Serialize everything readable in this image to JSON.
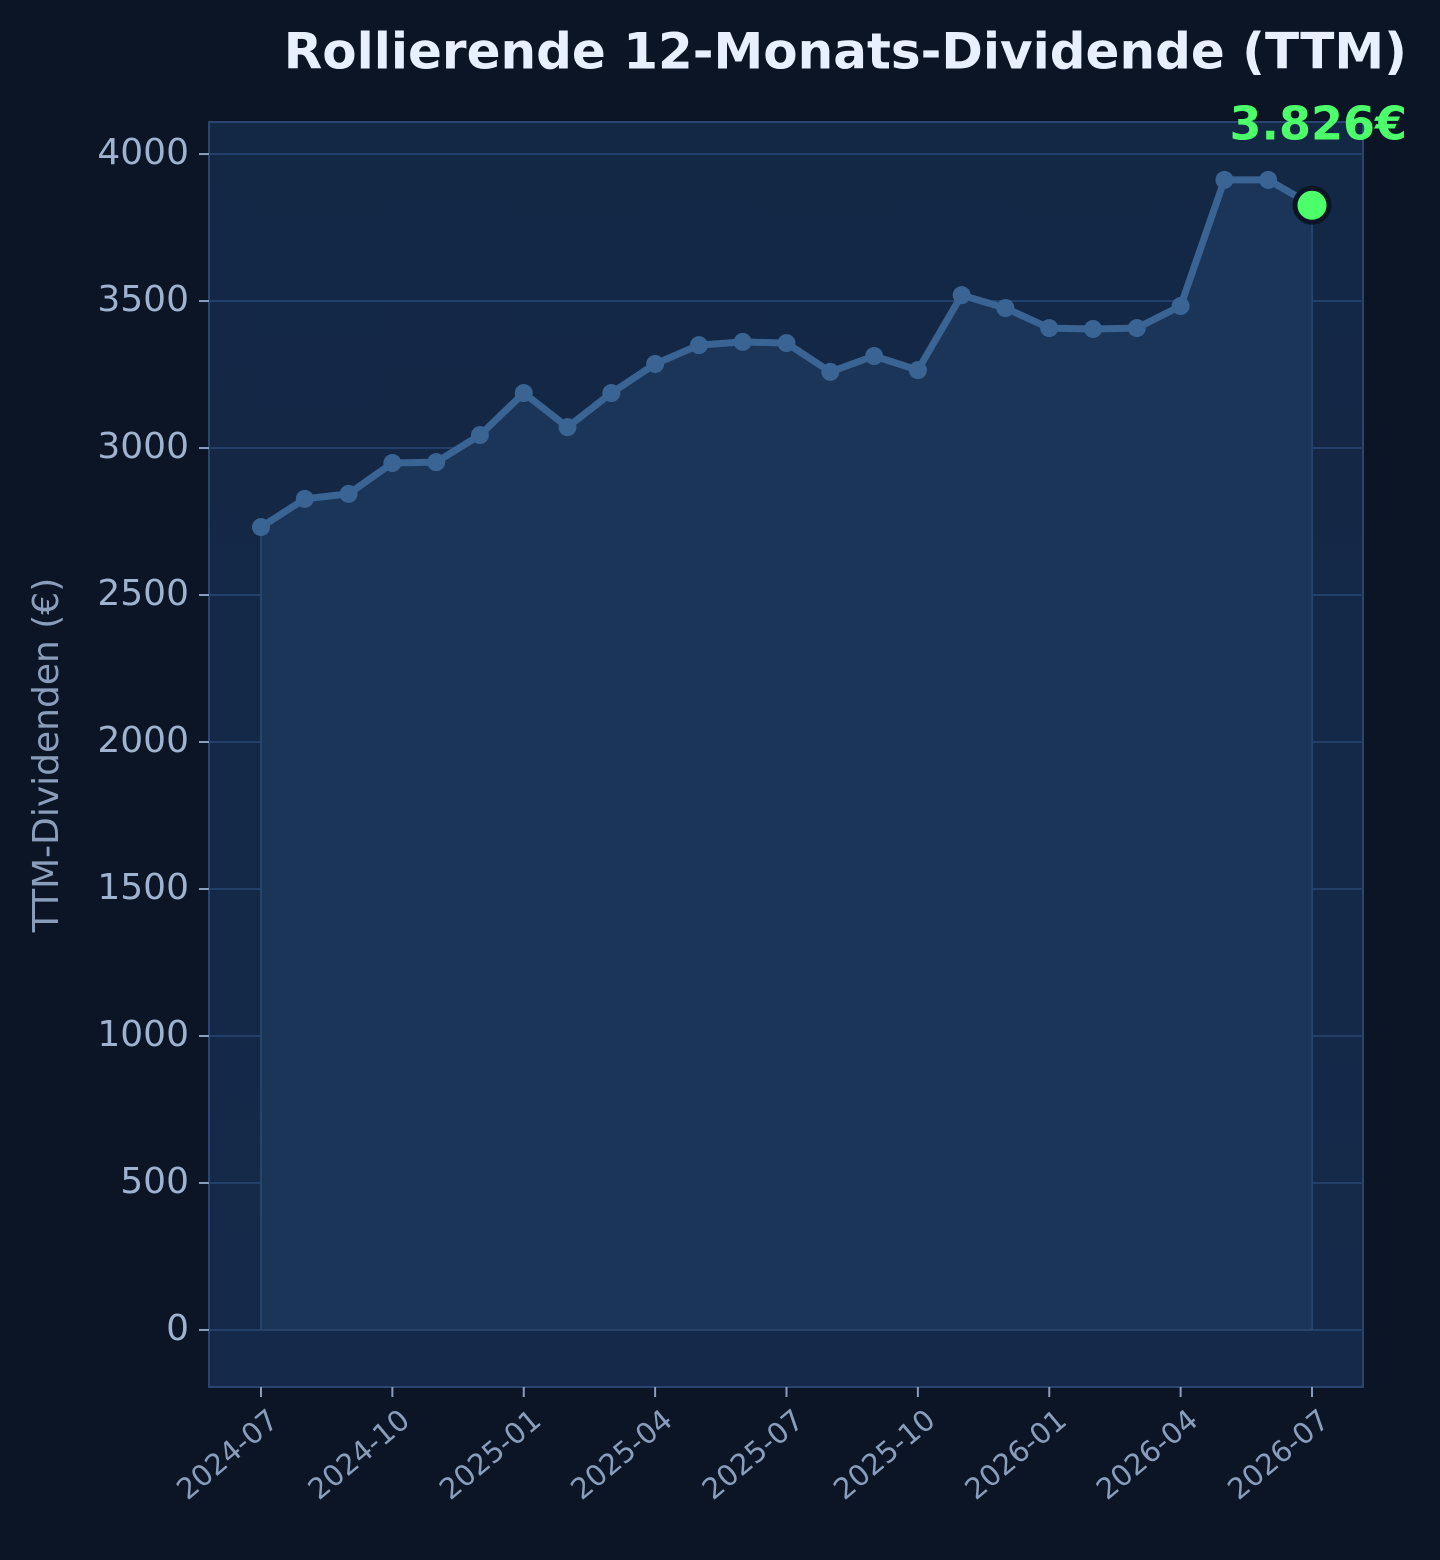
{
  "chart_data": {
    "type": "line",
    "title": "Rollierende 12-Monats-Dividende (TTM)",
    "y_label": "TTM-Dividenden (€)",
    "x": [
      "2024-07",
      "2024-08",
      "2024-09",
      "2024-10",
      "2024-11",
      "2024-12",
      "2025-01",
      "2025-02",
      "2025-03",
      "2025-04",
      "2025-05",
      "2025-06",
      "2025-07",
      "2025-08",
      "2025-09",
      "2025-10",
      "2025-11",
      "2025-12",
      "2026-01",
      "2026-02",
      "2026-03",
      "2026-04",
      "2026-05",
      "2026-06",
      "2026-07"
    ],
    "series": [
      {
        "name": "TTM-Dividende",
        "color": "#3a6494",
        "values": [
          2731,
          2827,
          2844,
          2949,
          2952,
          3044,
          3187,
          3071,
          3187,
          3286,
          3350,
          3361,
          3357,
          3259,
          3313,
          3265,
          3520,
          3476,
          3408,
          3405,
          3408,
          3483,
          3912,
          3912,
          3826
        ],
        "value_labels": [
          null,
          null,
          null,
          null,
          null,
          null,
          null,
          null,
          null,
          null,
          null,
          null,
          null,
          null,
          null,
          null,
          null,
          null,
          null,
          null,
          null,
          null,
          null,
          null,
          "3.826€"
        ]
      }
    ],
    "highlight_color": "#4cff6a",
    "ylim": [
      -194,
      4109
    ],
    "yticks": [
      0,
      500,
      1000,
      1500,
      2000,
      2500,
      3000,
      3500,
      4000
    ],
    "xticks": [
      "2024-07",
      "2024-10",
      "2025-01",
      "2025-04",
      "2025-07",
      "2025-10",
      "2026-01",
      "2026-04",
      "2026-07"
    ],
    "grid": true
  }
}
